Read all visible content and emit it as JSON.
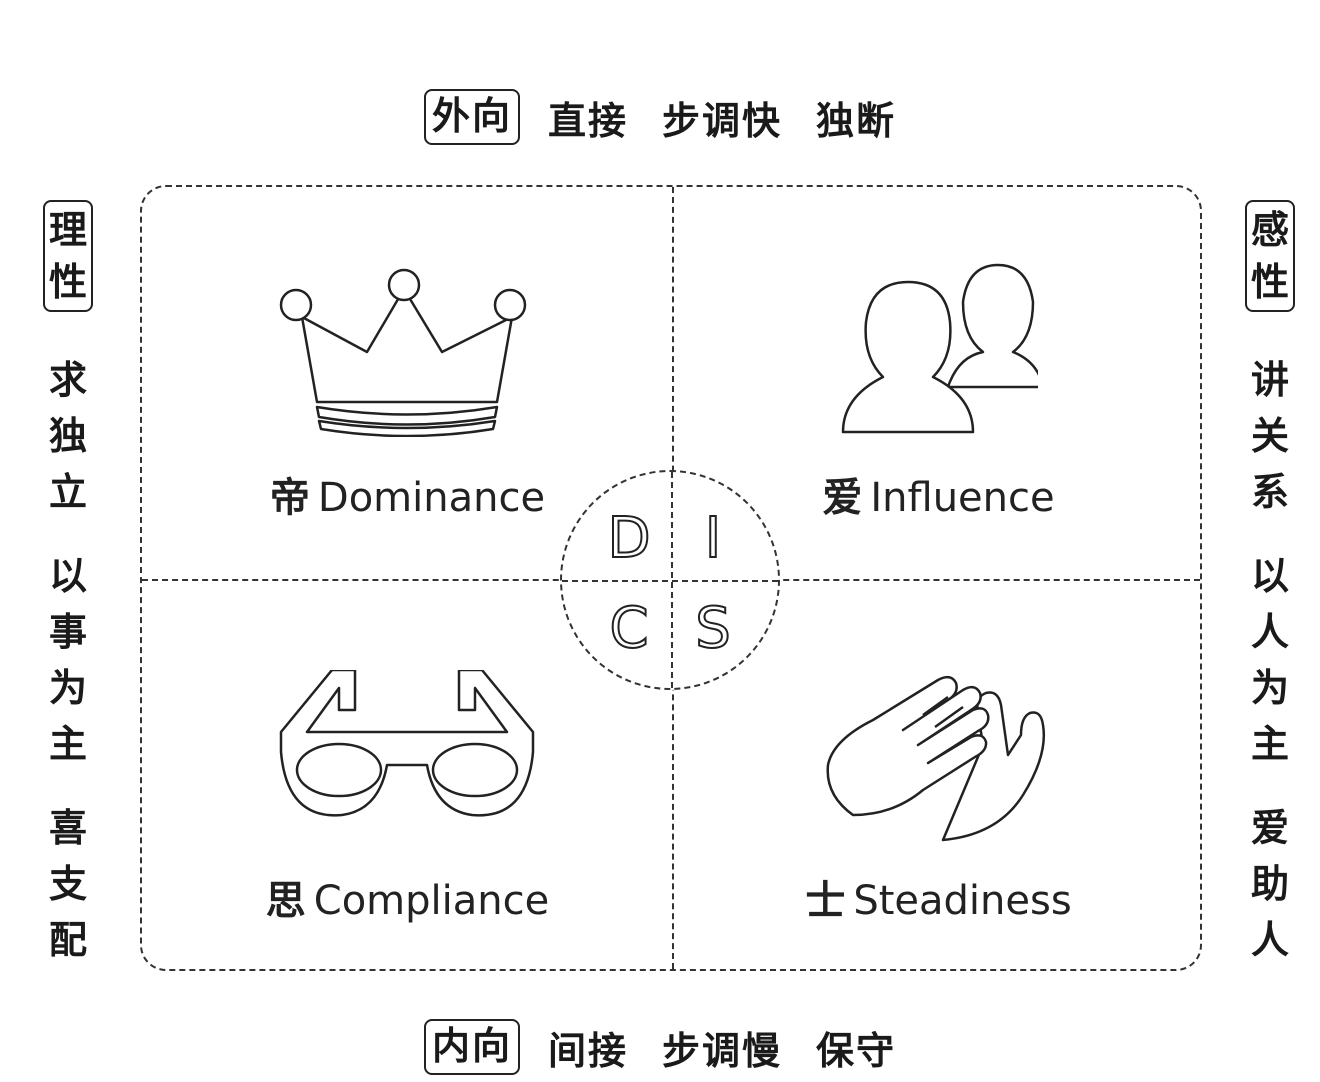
{
  "top": {
    "boxed": "外向",
    "texts": [
      "直接",
      "步调快",
      "独断"
    ]
  },
  "bottom": {
    "boxed": "内向",
    "texts": [
      "间接",
      "步调慢",
      "保守"
    ]
  },
  "left": {
    "boxed": [
      "理",
      "性"
    ],
    "groups": [
      [
        "求",
        "独",
        "立"
      ],
      [
        "以",
        "事",
        "为",
        "主"
      ],
      [
        "喜",
        "支",
        "配"
      ]
    ]
  },
  "right": {
    "boxed": [
      "感",
      "性"
    ],
    "groups": [
      [
        "讲",
        "关",
        "系"
      ],
      [
        "以",
        "人",
        "为",
        "主"
      ],
      [
        "爱",
        "助",
        "人"
      ]
    ]
  },
  "quadrants": {
    "d": {
      "zh": "帝",
      "en": "Dominance",
      "icon": "crown-icon"
    },
    "i": {
      "zh": "爱",
      "en": "Influence",
      "icon": "people-icon"
    },
    "c": {
      "zh": "思",
      "en": "Compliance",
      "icon": "glasses-icon"
    },
    "s": {
      "zh": "士",
      "en": "Steadiness",
      "icon": "clapping-hands-icon"
    }
  },
  "disc": {
    "d": "D",
    "i": "I",
    "c": "C",
    "s": "S"
  }
}
